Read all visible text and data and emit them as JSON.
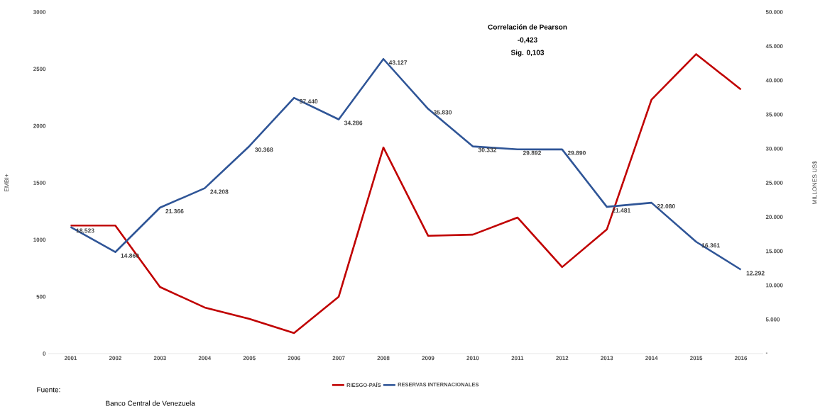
{
  "chart_data": {
    "type": "line",
    "categories": [
      "2001",
      "2002",
      "2003",
      "2004",
      "2005",
      "2006",
      "2007",
      "2008",
      "2009",
      "2010",
      "2011",
      "2012",
      "2013",
      "2014",
      "2015",
      "2016"
    ],
    "ylabel": "EMBI+",
    "y2label": "MILLONES US$",
    "ylim": [
      0,
      3000
    ],
    "yticks": [
      0,
      500,
      1000,
      1500,
      2000,
      2500,
      3000
    ],
    "y2lim": [
      0,
      50000
    ],
    "y2ticks": [
      {
        "value": 0,
        "label": "-"
      },
      {
        "value": 5000,
        "label": "5.000"
      },
      {
        "value": 10000,
        "label": "10.000"
      },
      {
        "value": 15000,
        "label": "15.000"
      },
      {
        "value": 20000,
        "label": "20.000"
      },
      {
        "value": 25000,
        "label": "25.000"
      },
      {
        "value": 30000,
        "label": "30.000"
      },
      {
        "value": 35000,
        "label": "35.000"
      },
      {
        "value": 40000,
        "label": "40.000"
      },
      {
        "value": 45000,
        "label": "45.000"
      },
      {
        "value": 50000,
        "label": "50.000"
      }
    ],
    "series": [
      {
        "name": "RIESGO-PAÍS",
        "color": "#c00000",
        "values": [
          1125,
          1125,
          585,
          405,
          305,
          180,
          500,
          1810,
          1035,
          1045,
          1195,
          760,
          1090,
          2230,
          2630,
          2320
        ]
      },
      {
        "name": "RESERVAS INTERNACIONALES",
        "color": "#2f5597",
        "axis": "y2",
        "values": [
          18523,
          14860,
          21366,
          24208,
          30368,
          37440,
          34286,
          43127,
          35830,
          30332,
          29892,
          29890,
          21481,
          22080,
          16361,
          12292
        ],
        "value_labels": [
          "18.523",
          "14.860",
          "21.366",
          "24.208",
          "30.368",
          "37.440",
          "34.286",
          "43.127",
          "35.830",
          "30.332",
          "29.892",
          "29.890",
          "21.481",
          "22.080",
          "16.361",
          "12.292"
        ]
      }
    ],
    "legend": "bottom",
    "grid": false,
    "annotations": [
      "Correlación de Pearson",
      "-0,423",
      "Sig. 0,103",
      "Fuente:",
      "Banco Central de Venezuela"
    ]
  }
}
